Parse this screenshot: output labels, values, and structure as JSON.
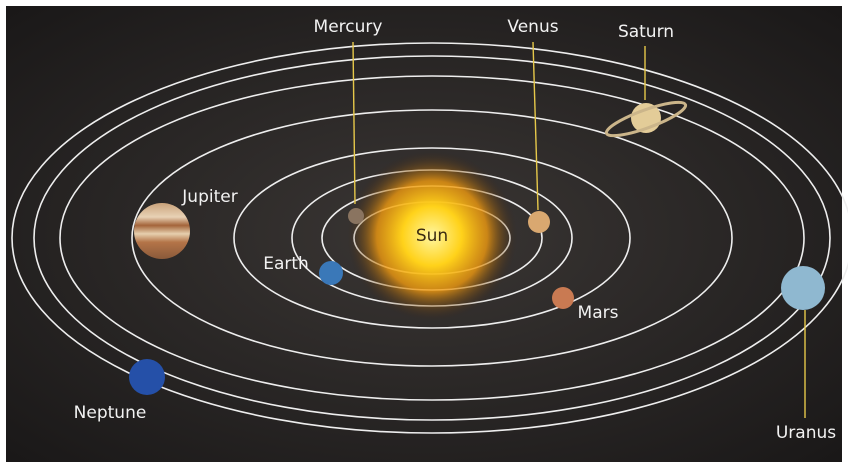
{
  "sun": {
    "label": "Sun"
  },
  "planets": [
    {
      "label": "Mercury"
    },
    {
      "label": "Venus"
    },
    {
      "label": "Earth"
    },
    {
      "label": "Mars"
    },
    {
      "label": "Jupiter"
    },
    {
      "label": "Saturn"
    },
    {
      "label": "Uranus"
    },
    {
      "label": "Neptune"
    }
  ]
}
